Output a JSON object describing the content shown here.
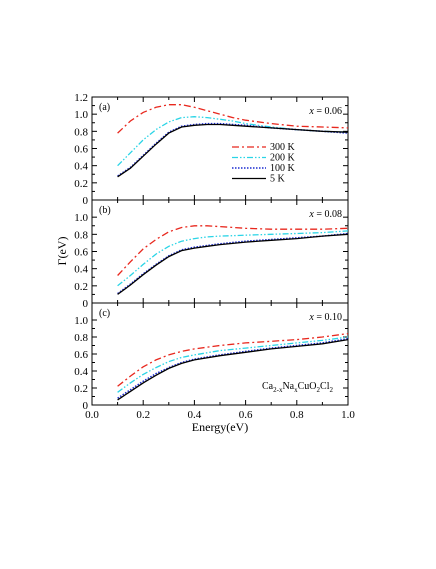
{
  "chart_data": {
    "type": "line",
    "xlabel": "Energy(eV)",
    "ylabel": "Γ(eV)",
    "xlim": [
      0.0,
      1.0
    ],
    "ylim": [
      0.0,
      1.2
    ],
    "x_ticks": [
      "0.0",
      "0.2",
      "0.4",
      "0.6",
      "0.8",
      "1.0"
    ],
    "y_ticks": [
      "0",
      "0.2",
      "0.4",
      "0.6",
      "0.8",
      "1.0",
      "1.2"
    ],
    "y_ticks_lower": [
      "0",
      "0.2",
      "0.4",
      "0.6",
      "0.8",
      "1.0"
    ],
    "colors": {
      "300 K": "#e8281e",
      "200 K": "#2ad4e6",
      "100 K": "#1a2bd0",
      "5 K": "#000000"
    },
    "legend": {
      "placement": "right, panel (a)",
      "entries": [
        "300 K",
        "200 K",
        "100 K",
        "5 K"
      ]
    },
    "formula": {
      "base1": "Ca",
      "sub1": "2-x",
      "base2": "Na",
      "sub2": "x",
      "base3": "CuO",
      "sub3": "2",
      "base4": "Cl",
      "sub4": "2"
    },
    "panels": [
      {
        "label": "(a)",
        "annotation": {
          "var": "x",
          "rest": " = 0.06"
        },
        "series": [
          {
            "name": "300 K",
            "x": [
              0.1,
              0.15,
              0.2,
              0.25,
              0.3,
              0.35,
              0.4,
              0.45,
              0.5,
              0.55,
              0.6,
              0.7,
              0.8,
              0.9,
              1.0
            ],
            "y": [
              0.78,
              0.92,
              1.02,
              1.08,
              1.11,
              1.11,
              1.08,
              1.04,
              1.0,
              0.96,
              0.93,
              0.89,
              0.86,
              0.85,
              0.84
            ]
          },
          {
            "name": "200 K",
            "x": [
              0.1,
              0.15,
              0.2,
              0.25,
              0.3,
              0.35,
              0.4,
              0.45,
              0.5,
              0.55,
              0.6,
              0.7,
              0.8,
              0.9,
              1.0
            ],
            "y": [
              0.4,
              0.55,
              0.7,
              0.82,
              0.91,
              0.96,
              0.97,
              0.96,
              0.94,
              0.92,
              0.89,
              0.85,
              0.82,
              0.8,
              0.79
            ]
          },
          {
            "name": "100 K",
            "x": [
              0.1,
              0.15,
              0.2,
              0.25,
              0.3,
              0.35,
              0.4,
              0.45,
              0.5,
              0.55,
              0.6,
              0.7,
              0.8,
              0.9,
              1.0
            ],
            "y": [
              0.28,
              0.38,
              0.52,
              0.66,
              0.79,
              0.86,
              0.88,
              0.89,
              0.89,
              0.88,
              0.87,
              0.84,
              0.82,
              0.8,
              0.78
            ]
          },
          {
            "name": "5 K",
            "x": [
              0.1,
              0.15,
              0.2,
              0.25,
              0.3,
              0.35,
              0.4,
              0.45,
              0.5,
              0.55,
              0.6,
              0.7,
              0.8,
              0.9,
              1.0
            ],
            "y": [
              0.27,
              0.37,
              0.51,
              0.65,
              0.78,
              0.85,
              0.87,
              0.88,
              0.88,
              0.87,
              0.86,
              0.84,
              0.82,
              0.8,
              0.79
            ]
          }
        ]
      },
      {
        "label": "(b)",
        "annotation": {
          "var": "x",
          "rest": " = 0.08"
        },
        "series": [
          {
            "name": "300 K",
            "x": [
              0.1,
              0.15,
              0.2,
              0.25,
              0.3,
              0.35,
              0.4,
              0.45,
              0.5,
              0.6,
              0.7,
              0.8,
              0.9,
              1.0
            ],
            "y": [
              0.32,
              0.48,
              0.63,
              0.74,
              0.83,
              0.88,
              0.9,
              0.9,
              0.89,
              0.87,
              0.86,
              0.86,
              0.86,
              0.87
            ]
          },
          {
            "name": "200 K",
            "x": [
              0.1,
              0.15,
              0.2,
              0.25,
              0.3,
              0.35,
              0.4,
              0.45,
              0.5,
              0.6,
              0.7,
              0.8,
              0.9,
              1.0
            ],
            "y": [
              0.2,
              0.32,
              0.45,
              0.57,
              0.66,
              0.72,
              0.75,
              0.77,
              0.78,
              0.79,
              0.8,
              0.81,
              0.82,
              0.84
            ]
          },
          {
            "name": "100 K",
            "x": [
              0.1,
              0.15,
              0.2,
              0.25,
              0.3,
              0.35,
              0.4,
              0.45,
              0.5,
              0.6,
              0.7,
              0.8,
              0.9,
              1.0
            ],
            "y": [
              0.11,
              0.22,
              0.34,
              0.45,
              0.55,
              0.62,
              0.65,
              0.67,
              0.69,
              0.72,
              0.74,
              0.76,
              0.78,
              0.81
            ]
          },
          {
            "name": "5 K",
            "x": [
              0.1,
              0.15,
              0.2,
              0.25,
              0.3,
              0.35,
              0.4,
              0.45,
              0.5,
              0.6,
              0.7,
              0.8,
              0.9,
              1.0
            ],
            "y": [
              0.1,
              0.21,
              0.33,
              0.44,
              0.54,
              0.61,
              0.64,
              0.66,
              0.68,
              0.71,
              0.73,
              0.75,
              0.78,
              0.8
            ]
          }
        ]
      },
      {
        "label": "(c)",
        "annotation": {
          "var": "x",
          "rest": " = 0.10"
        },
        "series": [
          {
            "name": "300 K",
            "x": [
              0.1,
              0.15,
              0.2,
              0.25,
              0.3,
              0.35,
              0.4,
              0.5,
              0.6,
              0.7,
              0.8,
              0.9,
              1.0
            ],
            "y": [
              0.22,
              0.34,
              0.45,
              0.53,
              0.59,
              0.63,
              0.66,
              0.7,
              0.73,
              0.75,
              0.77,
              0.8,
              0.84
            ]
          },
          {
            "name": "200 K",
            "x": [
              0.1,
              0.15,
              0.2,
              0.25,
              0.3,
              0.35,
              0.4,
              0.5,
              0.6,
              0.7,
              0.8,
              0.9,
              1.0
            ],
            "y": [
              0.15,
              0.26,
              0.36,
              0.44,
              0.51,
              0.56,
              0.59,
              0.64,
              0.67,
              0.7,
              0.73,
              0.76,
              0.8
            ]
          },
          {
            "name": "100 K",
            "x": [
              0.1,
              0.15,
              0.2,
              0.25,
              0.3,
              0.35,
              0.4,
              0.5,
              0.6,
              0.7,
              0.8,
              0.9,
              1.0
            ],
            "y": [
              0.08,
              0.18,
              0.28,
              0.37,
              0.44,
              0.5,
              0.54,
              0.59,
              0.63,
              0.67,
              0.7,
              0.73,
              0.78
            ]
          },
          {
            "name": "5 K",
            "x": [
              0.1,
              0.15,
              0.2,
              0.25,
              0.3,
              0.35,
              0.4,
              0.5,
              0.6,
              0.7,
              0.8,
              0.9,
              1.0
            ],
            "y": [
              0.06,
              0.16,
              0.26,
              0.35,
              0.43,
              0.49,
              0.53,
              0.58,
              0.62,
              0.66,
              0.69,
              0.72,
              0.77
            ]
          }
        ]
      }
    ]
  }
}
